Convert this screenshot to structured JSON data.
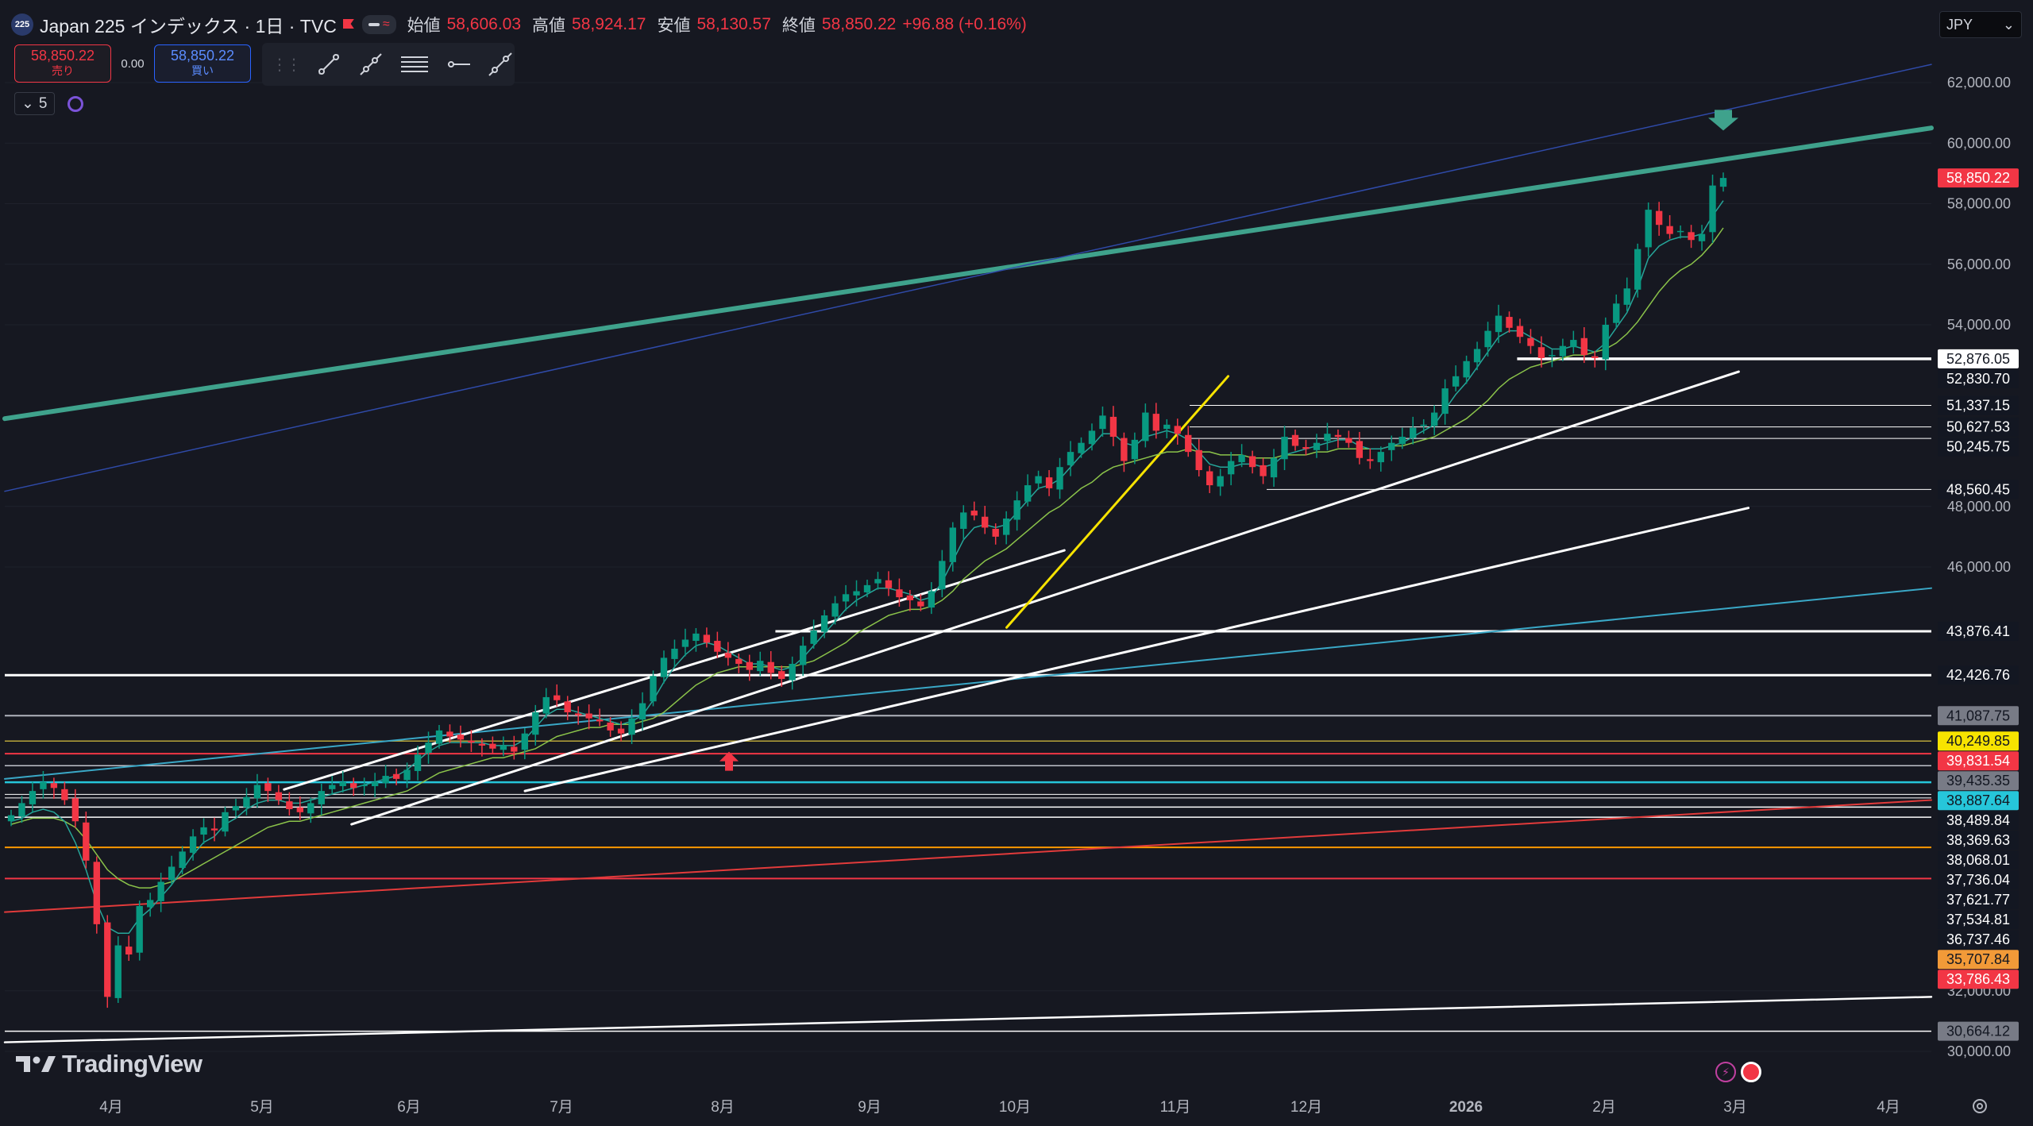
{
  "header": {
    "symbol_badge": "225",
    "symbol_title": "Japan 225 インデックス · 1日 · TVC",
    "open_label": "始値",
    "open_value": "58,606.03",
    "high_label": "高値",
    "high_value": "58,924.17",
    "low_label": "安値",
    "low_value": "58,130.57",
    "close_label": "終値",
    "close_value": "58,850.22",
    "change": "+96.88 (+0.16%)"
  },
  "trade": {
    "sell_price": "58,850.22",
    "sell_label": "売り",
    "spread": "0.00",
    "buy_price": "58,850.22",
    "buy_label": "買い"
  },
  "indicator": {
    "count": "5"
  },
  "currency": "JPY",
  "logo_text": "TradingView",
  "colors": {
    "up": "#089981",
    "down": "#f23645",
    "background": "#161821",
    "grid": "#1f222c"
  },
  "icons": [
    "trend-line-icon",
    "ray-icon",
    "parallel-channel-icon",
    "horizontal-ray-icon",
    "extended-line-icon",
    "settings-gear-icon"
  ],
  "chart_data": {
    "type": "candlestick",
    "x_axis_labels": [
      "4月",
      "5月",
      "6月",
      "7月",
      "8月",
      "9月",
      "10月",
      "11月",
      "12月",
      "2026",
      "2月",
      "3月",
      "4月"
    ],
    "y_ticks": [
      30000,
      32000,
      46000,
      48000,
      54000,
      56000,
      58000,
      60000,
      62000
    ],
    "y_tick_labels": [
      "30,000.00",
      "32,000.00",
      "46,000.00",
      "48,000.00",
      "54,000.00",
      "56,000.00",
      "58,000.00",
      "60,000.00",
      "62,000.00"
    ],
    "ylim": [
      29700,
      63000
    ],
    "last_price": {
      "value": 58850.22,
      "label": "58,850.22",
      "color": "#f23645"
    },
    "price_closes": [
      37800,
      38200,
      38600,
      38900,
      38700,
      38300,
      37600,
      36300,
      34200,
      31800,
      33500,
      33200,
      34800,
      35000,
      35600,
      36100,
      36600,
      37100,
      37400,
      37300,
      37900,
      38100,
      38400,
      38800,
      38600,
      38300,
      38000,
      37900,
      38200,
      38600,
      38800,
      38900,
      38700,
      38800,
      38900,
      39100,
      39000,
      39300,
      39800,
      40200,
      40600,
      40400,
      40300,
      40200,
      40100,
      40000,
      40100,
      39900,
      40500,
      41200,
      41700,
      41600,
      41200,
      41100,
      41000,
      40900,
      40600,
      40500,
      41000,
      41500,
      42400,
      43000,
      43300,
      43600,
      43800,
      43500,
      43200,
      43000,
      42800,
      42600,
      42900,
      42500,
      42300,
      42800,
      43400,
      43900,
      44400,
      44800,
      45100,
      45200,
      45400,
      45600,
      45300,
      45000,
      44900,
      44700,
      45200,
      46200,
      47300,
      47800,
      47700,
      47300,
      47000,
      47600,
      48200,
      48700,
      49000,
      48600,
      49300,
      49800,
      50100,
      50500,
      51000,
      50300,
      49500,
      50200,
      51100,
      50500,
      50700,
      50400,
      49800,
      49200,
      48700,
      49000,
      49500,
      49700,
      49300,
      49000,
      49600,
      50300,
      50000,
      49900,
      50100,
      50400,
      50300,
      50100,
      49600,
      49500,
      49800,
      50100,
      50300,
      50600,
      50700,
      51100,
      51900,
      52300,
      52800,
      53200,
      53800,
      54300,
      53900,
      53600,
      53300,
      52900,
      53000,
      53300,
      53500,
      53000,
      52900,
      54000,
      54700,
      55200,
      56500,
      57800,
      57300,
      57000,
      57100,
      56800,
      57000,
      58600,
      58850
    ],
    "ma_fast": [
      37600,
      37700,
      37900,
      38000,
      37900,
      37600,
      36900,
      36000,
      34900,
      34100,
      33900,
      33900,
      34400,
      34700,
      35100,
      35500,
      36000,
      36500,
      36900,
      37100,
      37500,
      37700,
      38000,
      38200,
      38300,
      38300,
      38200,
      38200,
      38300,
      38400,
      38500,
      38600,
      38700,
      38800,
      38900,
      39000,
      39100,
      39300,
      39600,
      39900,
      40100,
      40200,
      40200,
      40200,
      40200,
      40100,
      40100,
      40100,
      40300,
      40700,
      41100,
      41300,
      41300,
      41200,
      41100,
      41000,
      40900,
      40800,
      40900,
      41100,
      41600,
      42200,
      42700,
      43100,
      43400,
      43500,
      43400,
      43200,
      43000,
      42800,
      42800,
      42700,
      42600,
      42700,
      43000,
      43400,
      43800,
      44200,
      44600,
      44900,
      45100,
      45300,
      45300,
      45200,
      45100,
      44900,
      45000,
      45500,
      46200,
      46900,
      47300,
      47400,
      47300,
      47400,
      47800,
      48200,
      48600,
      48700,
      48900,
      49300,
      49700,
      50000,
      50400,
      50400,
      50100,
      50000,
      50300,
      50400,
      50500,
      50400,
      50200,
      49800,
      49400,
      49300,
      49300,
      49400,
      49400,
      49300,
      49400,
      49700,
      49800,
      49900,
      50000,
      50100,
      50200,
      50200,
      50000,
      49900,
      49900,
      50000,
      50100,
      50300,
      50500,
      50700,
      51200,
      51700,
      52100,
      52600,
      53100,
      53600,
      53800,
      53800,
      53600,
      53400,
      53200,
      53200,
      53300,
      53200,
      53100,
      53400,
      53900,
      54400,
      55200,
      56200,
      56600,
      56800,
      56900,
      56900,
      57000,
      57600,
      58100
    ],
    "ma_slow": [
      37500,
      37600,
      37700,
      37700,
      37700,
      37600,
      37400,
      37000,
      36500,
      36000,
      35700,
      35500,
      35400,
      35400,
      35500,
      35600,
      35800,
      36000,
      36200,
      36400,
      36600,
      36800,
      37000,
      37200,
      37400,
      37500,
      37600,
      37600,
      37700,
      37800,
      37900,
      38000,
      38100,
      38200,
      38300,
      38400,
      38500,
      38600,
      38800,
      39000,
      39200,
      39300,
      39400,
      39500,
      39600,
      39700,
      39700,
      39800,
      39900,
      40000,
      40200,
      40400,
      40500,
      40600,
      40700,
      40700,
      40800,
      40800,
      40800,
      40900,
      41000,
      41200,
      41500,
      41800,
      42100,
      42300,
      42500,
      42600,
      42700,
      42700,
      42700,
      42700,
      42700,
      42700,
      42800,
      42900,
      43100,
      43300,
      43500,
      43800,
      44000,
      44200,
      44400,
      44500,
      44600,
      44600,
      44700,
      44900,
      45200,
      45600,
      45900,
      46200,
      46400,
      46600,
      46900,
      47200,
      47500,
      47800,
      48000,
      48300,
      48600,
      48800,
      49100,
      49300,
      49400,
      49500,
      49600,
      49700,
      49800,
      49800,
      49900,
      49800,
      49800,
      49700,
      49700,
      49700,
      49600,
      49600,
      49600,
      49700,
      49700,
      49700,
      49800,
      49800,
      49900,
      49900,
      49900,
      49900,
      49900,
      50000,
      50000,
      50100,
      50200,
      50300,
      50500,
      50700,
      50900,
      51200,
      51500,
      51900,
      52200,
      52400,
      52600,
      52700,
      52800,
      52900,
      53000,
      53000,
      53100,
      53200,
      53400,
      53700,
      54100,
      54600,
      55100,
      55500,
      55800,
      56000,
      56300,
      56700,
      57200
    ],
    "levels": [
      {
        "value": 52876.05,
        "label": "52,876.05",
        "color": "#ffffff",
        "badge_bg": "#ffffff",
        "badge_fg": "#131722",
        "x_start_frac": 0.785,
        "weight": 3.5
      },
      {
        "value": 52830.7,
        "label": "52,830.70",
        "color": "#ffffff",
        "badge_bg": "#131722",
        "badge_fg": "#ffffff",
        "x_start_frac": null,
        "weight": 0
      },
      {
        "value": 51337.15,
        "label": "51,337.15",
        "color": "#ffffff",
        "badge_bg": "#131722",
        "badge_fg": "#ffffff",
        "x_start_frac": 0.615,
        "weight": 1
      },
      {
        "value": 50627.53,
        "label": "50,627.53",
        "color": "#ffffff",
        "badge_bg": "#131722",
        "badge_fg": "#ffffff",
        "x_start_frac": 0.615,
        "weight": 1
      },
      {
        "value": 50245.75,
        "label": "50,245.75",
        "color": "#ffffff",
        "badge_bg": "#131722",
        "badge_fg": "#ffffff",
        "x_start_frac": 0.615,
        "weight": 1
      },
      {
        "value": 48560.45,
        "label": "48,560.45",
        "color": "#ffffff",
        "badge_bg": "#131722",
        "badge_fg": "#ffffff",
        "x_start_frac": 0.655,
        "weight": 1
      },
      {
        "value": 43876.41,
        "label": "43,876.41",
        "color": "#ffffff",
        "badge_bg": "#131722",
        "badge_fg": "#ffffff",
        "x_start_frac": 0.4,
        "weight": 3
      },
      {
        "value": 42426.76,
        "label": "42,426.76",
        "color": "#ffffff",
        "badge_bg": "#131722",
        "badge_fg": "#ffffff",
        "x_start_frac": 0,
        "weight": 3
      },
      {
        "value": 41087.75,
        "label": "41,087.75",
        "color": "#b0b3bc",
        "badge_bg": "#787b86",
        "badge_fg": "#131722",
        "x_start_frac": 0,
        "weight": 2
      },
      {
        "value": 40249.85,
        "label": "40,249.85",
        "color": "#b8a43a",
        "badge_bg": "#f7e300",
        "badge_fg": "#131722",
        "x_start_frac": 0,
        "weight": 1.5
      },
      {
        "value": 39831.54,
        "label": "39,831.54",
        "color": "#f23645",
        "badge_bg": "#f23645",
        "badge_fg": "#ffffff",
        "x_start_frac": 0,
        "weight": 2
      },
      {
        "value": 39435.35,
        "label": "39,435.35",
        "color": "#c0c3cb",
        "badge_bg": "#787b86",
        "badge_fg": "#131722",
        "x_start_frac": 0,
        "weight": 1.5
      },
      {
        "value": 38887.64,
        "label": "38,887.64",
        "color": "#26c6da",
        "badge_bg": "#26c6da",
        "badge_fg": "#131722",
        "x_start_frac": 0,
        "weight": 2.5
      },
      {
        "value": 38489.84,
        "label": "38,489.84",
        "color": "#ffffff",
        "badge_bg": "#131722",
        "badge_fg": "#ffffff",
        "x_start_frac": 0,
        "weight": 1
      },
      {
        "value": 38369.63,
        "label": "38,369.63",
        "color": "#ffffff",
        "badge_bg": "#131722",
        "badge_fg": "#ffffff",
        "x_start_frac": 0,
        "weight": 1
      },
      {
        "value": 38068.01,
        "label": "38,068.01",
        "color": "#ffffff",
        "badge_bg": "#131722",
        "badge_fg": "#ffffff",
        "x_start_frac": 0,
        "weight": 1.5
      },
      {
        "value": 37736.04,
        "label": "37,736.04",
        "color": "#ffffff",
        "badge_bg": "#131722",
        "badge_fg": "#ffffff",
        "x_start_frac": 0,
        "weight": 1.5
      },
      {
        "value": 37621.77,
        "label": "37,621.77",
        "color": "#ffffff",
        "badge_bg": "#131722",
        "badge_fg": "#ffffff",
        "x_start_frac": null,
        "weight": 0
      },
      {
        "value": 37534.81,
        "label": "37,534.81",
        "color": "#ffffff",
        "badge_bg": "#131722",
        "badge_fg": "#ffffff",
        "x_start_frac": null,
        "weight": 0
      },
      {
        "value": 36737.46,
        "label": "36,737.46",
        "color": "#ff9800",
        "badge_bg": "#131722",
        "badge_fg": "#ffffff",
        "x_start_frac": 0,
        "weight": 2
      },
      {
        "value": 35707.84,
        "label": "35,707.84",
        "color": "#f23645",
        "badge_bg": "#f29a38",
        "badge_fg": "#131722",
        "x_start_frac": 0,
        "weight": 2
      },
      {
        "value": 33786.43,
        "label": "33,786.43",
        "color": "#f23645",
        "badge_bg": "#f23645",
        "badge_fg": "#ffffff",
        "x_start_frac": null,
        "weight": 0
      },
      {
        "value": 30664.12,
        "label": "30,664.12",
        "color": "#ffffff",
        "badge_bg": "#787b86",
        "badge_fg": "#131722",
        "x_start_frac": 0,
        "weight": 1.5
      }
    ],
    "trendlines": [
      {
        "x1": 0.0,
        "y1": 50900,
        "x2": 1.0,
        "y2": 60500,
        "color": "#3fa28c",
        "width": 6
      },
      {
        "x1": 0.0,
        "y1": 48500,
        "x2": 1.0,
        "y2": 62600,
        "color": "#2f4aa8",
        "width": 1.5
      },
      {
        "x1": 0.0,
        "y1": 39000,
        "x2": 1.0,
        "y2": 45300,
        "color": "#3aa8c7",
        "width": 2
      },
      {
        "x1": 0.0,
        "y1": 34600,
        "x2": 1.0,
        "y2": 38300,
        "color": "#e23b3b",
        "width": 2
      },
      {
        "x1": 0.0,
        "y1": 30300,
        "x2": 1.0,
        "y2": 31800,
        "color": "#ffffff",
        "width": 2.5
      },
      {
        "x1": 0.145,
        "y1": 38650,
        "x2": 0.55,
        "y2": 46550,
        "color": "#ffffff",
        "width": 3
      },
      {
        "x1": 0.18,
        "y1": 37500,
        "x2": 0.9,
        "y2": 52450,
        "color": "#ffffff",
        "width": 3
      },
      {
        "x1": 0.27,
        "y1": 38600,
        "x2": 0.905,
        "y2": 47950,
        "color": "#ffffff",
        "width": 3
      },
      {
        "x1": 0.52,
        "y1": 44000,
        "x2": 0.635,
        "y2": 52300,
        "color": "#f7e300",
        "width": 3
      }
    ]
  }
}
